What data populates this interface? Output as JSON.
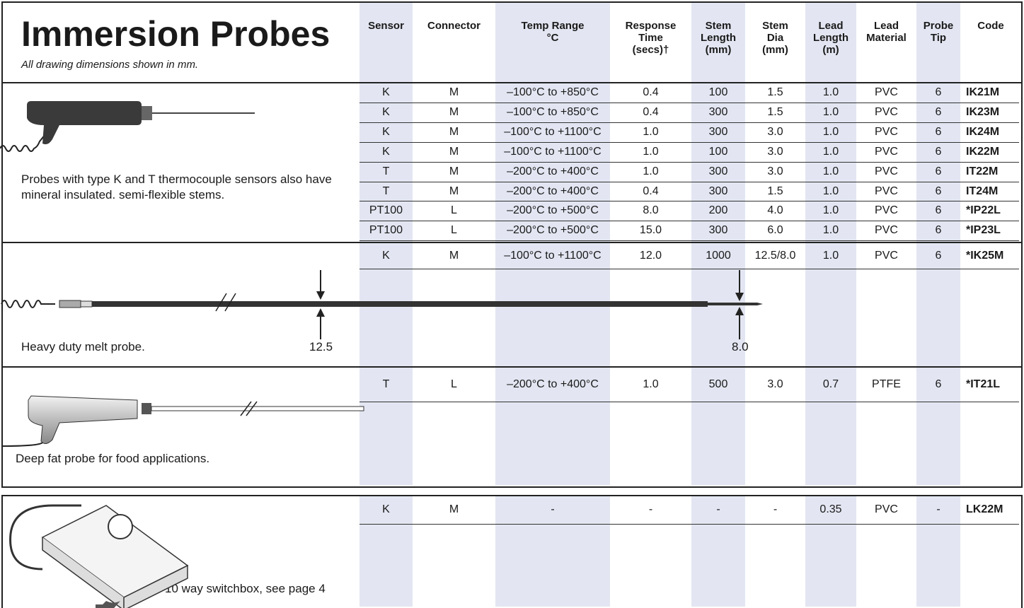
{
  "header": {
    "title": "Immersion Probes",
    "subtitle": "All drawing dimensions shown in mm.",
    "columns": [
      "Sensor",
      "Connector",
      "Temp Range\n°C",
      "Response\nTime\n(secs)†",
      "Stem\nLength\n(mm)",
      "Stem\nDia\n(mm)",
      "Lead\nLength\n(m)",
      "Lead\nMaterial",
      "Probe\nTip",
      "Code"
    ]
  },
  "sections": [
    {
      "description": "Probes with type K and T thermocouple sensors also have mineral insulated. semi-flexible stems.",
      "rows": [
        [
          "K",
          "M",
          "–100°C to +850°C",
          "0.4",
          "100",
          "1.5",
          "1.0",
          "PVC",
          "6",
          "IK21M"
        ],
        [
          "K",
          "M",
          "–100°C to +850°C",
          "0.4",
          "300",
          "1.5",
          "1.0",
          "PVC",
          "6",
          "IK23M"
        ],
        [
          "K",
          "M",
          "–100°C to +1100°C",
          "1.0",
          "300",
          "3.0",
          "1.0",
          "PVC",
          "6",
          "IK24M"
        ],
        [
          "K",
          "M",
          "–100°C to +1100°C",
          "1.0",
          "100",
          "3.0",
          "1.0",
          "PVC",
          "6",
          "IK22M"
        ],
        [
          "T",
          "M",
          "–200°C to +400°C",
          "1.0",
          "300",
          "3.0",
          "1.0",
          "PVC",
          "6",
          "IT22M"
        ],
        [
          "T",
          "M",
          "–200°C to +400°C",
          "0.4",
          "300",
          "1.5",
          "1.0",
          "PVC",
          "6",
          "IT24M"
        ],
        [
          "PT100",
          "L",
          "–200°C to +500°C",
          "8.0",
          "200",
          "4.0",
          "1.0",
          "PVC",
          "6",
          "*IP22L"
        ],
        [
          "PT100",
          "L",
          "–200°C to +500°C",
          "15.0",
          "300",
          "6.0",
          "1.0",
          "PVC",
          "6",
          "*IP23L"
        ]
      ]
    },
    {
      "description": "Heavy duty melt probe.",
      "dimensions": [
        "12.5",
        "8.0"
      ],
      "rows": [
        [
          "K",
          "M",
          "–100°C to +1100°C",
          "12.0",
          "1000",
          "12.5/8.0",
          "1.0",
          "PVC",
          "6",
          "*IK25M"
        ]
      ]
    },
    {
      "description": "Deep fat probe for food applications.",
      "rows": [
        [
          "T",
          "L",
          "–200°C to +400°C",
          "1.0",
          "500",
          "3.0",
          "0.7",
          "PTFE",
          "6",
          "*IT21L"
        ]
      ]
    },
    {
      "description": "10 way switchbox, see page 4",
      "rows": [
        [
          "K",
          "M",
          "-",
          "-",
          "-",
          "-",
          "0.35",
          "PVC",
          "-",
          "LK22M"
        ]
      ]
    }
  ]
}
